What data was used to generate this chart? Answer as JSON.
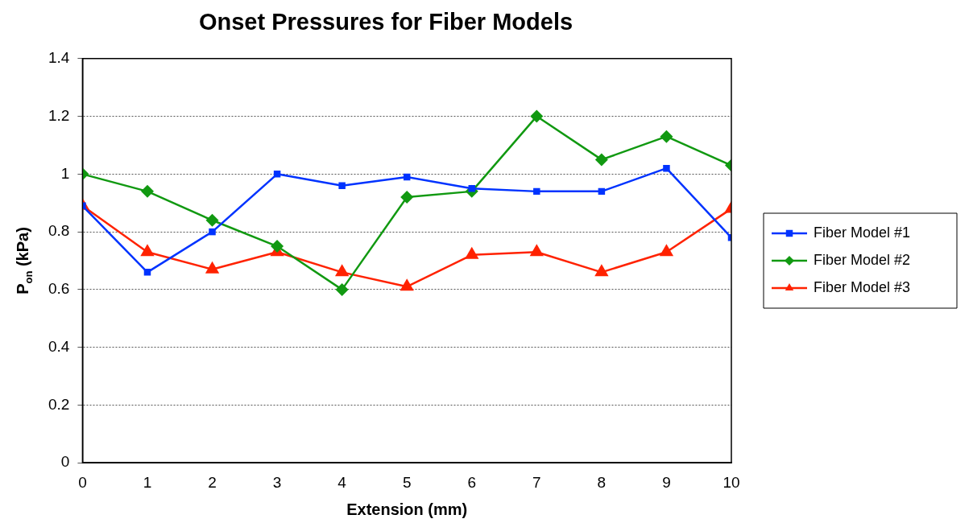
{
  "chart_data": {
    "type": "line",
    "title": "Onset Pressures for Fiber Models",
    "xlabel": "Extension (mm)",
    "ylabel": "P$_{on}$ (kPa)",
    "x": [
      0,
      1,
      2,
      3,
      4,
      5,
      6,
      7,
      8,
      9,
      10
    ],
    "xlim": [
      0,
      10
    ],
    "xticks": [
      0,
      1,
      2,
      3,
      4,
      5,
      6,
      7,
      8,
      9,
      10
    ],
    "ylim": [
      0,
      1.4
    ],
    "yticks": [
      0,
      0.2,
      0.4,
      0.6,
      0.8,
      1,
      1.2,
      1.4
    ],
    "grid": "y",
    "legend": "right",
    "line_style": "solid",
    "series": [
      {
        "name": "Fiber Model #1",
        "color": "#0033ff",
        "marker": "square",
        "values": [
          0.89,
          0.66,
          0.8,
          1.0,
          0.96,
          0.99,
          0.95,
          0.94,
          0.94,
          1.02,
          0.78
        ]
      },
      {
        "name": "Fiber Model #2",
        "color": "#119911",
        "marker": "diamond",
        "values": [
          1.0,
          0.94,
          0.84,
          0.75,
          0.6,
          0.92,
          0.94,
          1.2,
          1.05,
          1.13,
          1.03
        ]
      },
      {
        "name": "Fiber Model #3",
        "color": "#ff2200",
        "marker": "triangle",
        "values": [
          0.89,
          0.73,
          0.67,
          0.73,
          0.66,
          0.61,
          0.72,
          0.73,
          0.66,
          0.73,
          0.88
        ]
      }
    ]
  }
}
